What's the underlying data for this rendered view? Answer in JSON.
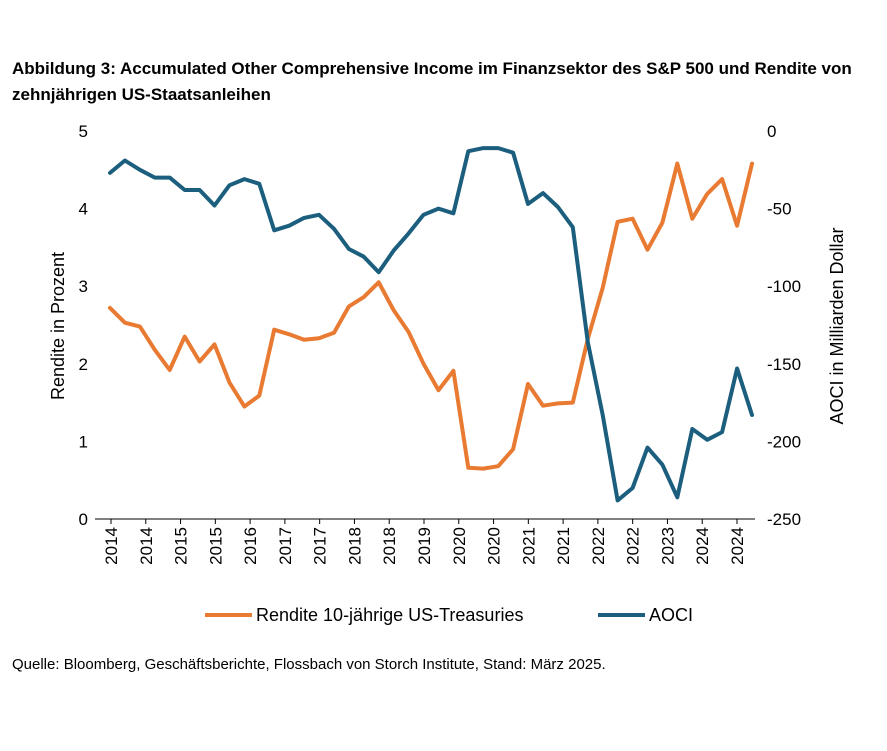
{
  "chart_data": {
    "type": "line",
    "title": "Abbildung 3: Accumulated Other Comprehensive Income im Finanzsektor des S&P 500 und Rendite von zehnjährigen US-Staatsanleihen",
    "source": "Quelle: Bloomberg, Geschäftsberichte, Flossbach von Storch Institute, Stand: März 2025.",
    "ylabel_left": "Rendite in Prozent",
    "ylabel_right": "AOCI in Milliarden Dollar",
    "ylim_left": [
      0,
      5
    ],
    "ylim_right": [
      -250,
      0
    ],
    "yticks_left": [
      "0",
      "1",
      "2",
      "3",
      "4",
      "5"
    ],
    "yticks_right": [
      "-250",
      "-200",
      "-150",
      "-100",
      "-50",
      "0"
    ],
    "xtick_labels": [
      "2014",
      "2014",
      "2015",
      "2015",
      "2016",
      "2017",
      "2017",
      "2018",
      "2018",
      "2019",
      "2020",
      "2020",
      "2021",
      "2021",
      "2022",
      "2022",
      "2023",
      "2024",
      "2024"
    ],
    "legend": [
      "Rendite 10-jährige US-Treasuries",
      "AOCI"
    ],
    "series": [
      {
        "name": "Rendite 10-jährige US-Treasuries",
        "axis": "left",
        "color": "#E97A32",
        "values": [
          2.72,
          2.53,
          2.48,
          2.18,
          1.92,
          2.35,
          2.03,
          2.25,
          1.76,
          1.45,
          1.59,
          2.44,
          2.38,
          2.31,
          2.33,
          2.4,
          2.74,
          2.86,
          3.05,
          2.69,
          2.41,
          2.0,
          1.66,
          1.91,
          0.66,
          0.65,
          0.68,
          0.9,
          1.74,
          1.46,
          1.49,
          1.5,
          2.32,
          2.98,
          3.83,
          3.87,
          3.47,
          3.82,
          4.58,
          3.87,
          4.19,
          4.38,
          3.78,
          4.58
        ]
      },
      {
        "name": "AOCI",
        "axis": "right",
        "color": "#1B5E7E",
        "values": [
          -27,
          -19,
          -25,
          -30,
          -30,
          -38,
          -38,
          -48,
          -35,
          -31,
          -34,
          -64,
          -61,
          -56,
          -54,
          -63,
          -76,
          -81,
          -91,
          -77,
          -66,
          -54,
          -50,
          -53,
          -13,
          -11,
          -11,
          -14,
          -47,
          -40,
          -49,
          -62,
          -136,
          -183,
          -238,
          -230,
          -204,
          -215,
          -236,
          -192,
          -199,
          -194,
          -153,
          -183
        ]
      }
    ]
  }
}
